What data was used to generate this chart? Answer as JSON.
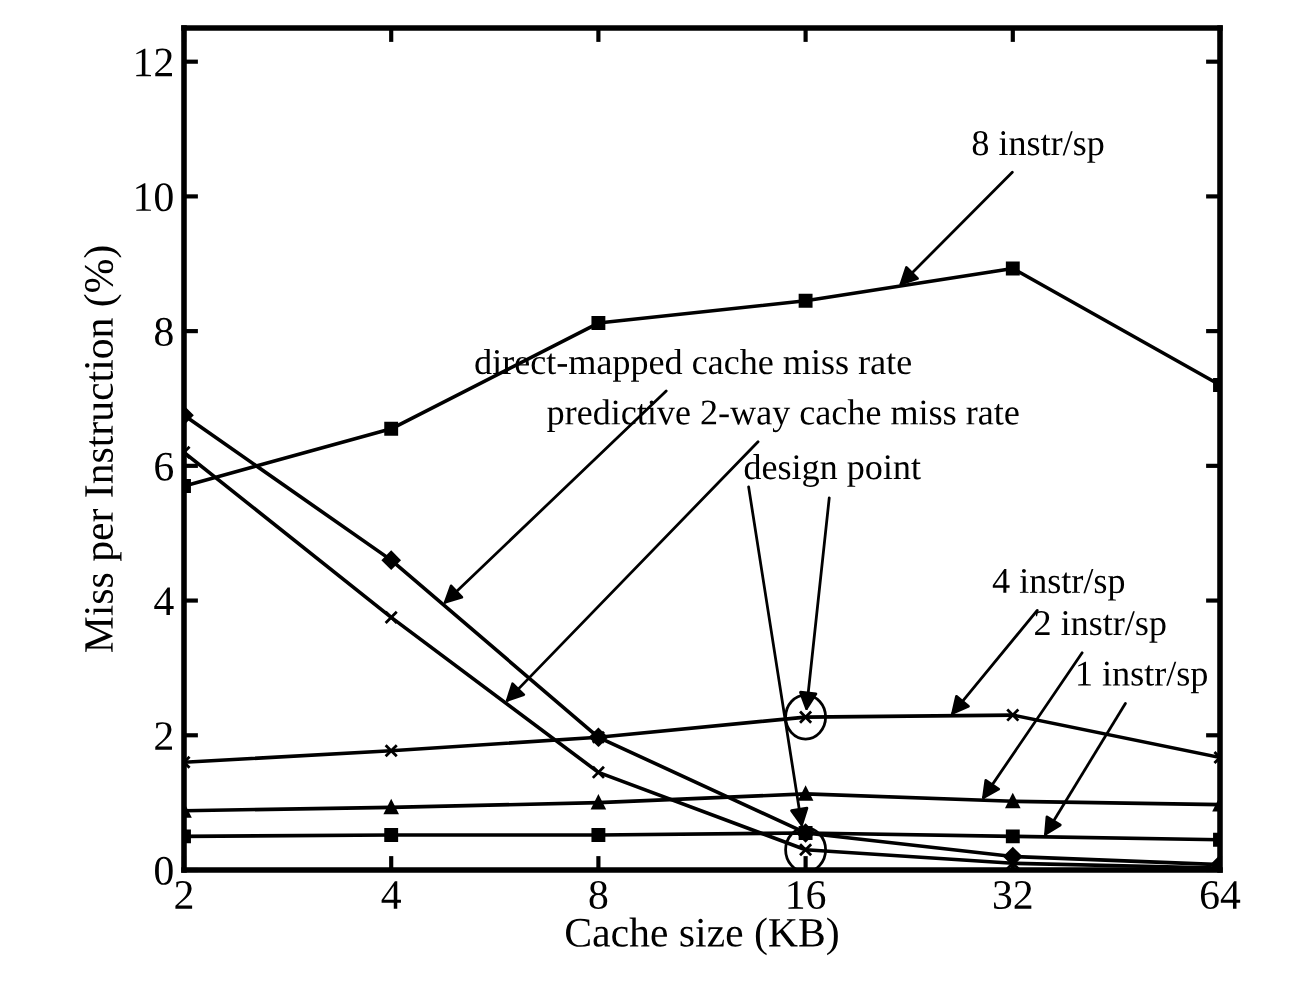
{
  "chart_data": {
    "type": "line",
    "xlabel": "Cache size (KB)",
    "ylabel": "Miss per Instruction (%)",
    "x": [
      2,
      4,
      8,
      16,
      32,
      64
    ],
    "log": "x",
    "xlim": [
      2,
      64
    ],
    "xticks": [
      2,
      4,
      8,
      16,
      32,
      64
    ],
    "ylim": [
      0,
      12.5
    ],
    "yticks": [
      0,
      2,
      4,
      6,
      8,
      10,
      12
    ],
    "grid": false,
    "line_style": "solid",
    "series": [
      {
        "name": "8 instr/sp",
        "color": "#000000",
        "marker": "square",
        "values": [
          5.7,
          6.55,
          8.12,
          8.45,
          8.93,
          7.2
        ]
      },
      {
        "name": "direct-mapped cache miss rate",
        "color": "#000000",
        "marker": "diamond",
        "values": [
          6.75,
          4.6,
          1.97,
          0.55,
          0.2,
          0.08
        ]
      },
      {
        "name": "predictive 2-way cache miss rate",
        "color": "#000000",
        "marker": "cross",
        "values": [
          6.2,
          3.75,
          1.45,
          0.3,
          0.1,
          0.03
        ]
      },
      {
        "name": "4 instr/sp",
        "color": "#000000",
        "marker": "cross",
        "values": [
          1.6,
          1.77,
          1.97,
          2.27,
          2.3,
          1.67
        ]
      },
      {
        "name": "2 instr/sp",
        "color": "#000000",
        "marker": "triangle",
        "values": [
          0.88,
          0.93,
          1.0,
          1.13,
          1.02,
          0.97
        ]
      },
      {
        "name": "1 instr/sp",
        "color": "#000000",
        "marker": "square",
        "values": [
          0.5,
          0.52,
          0.52,
          0.55,
          0.5,
          0.45
        ]
      }
    ],
    "annotations": [
      {
        "text": "design point",
        "x": 16,
        "y": 2.27
      }
    ]
  }
}
